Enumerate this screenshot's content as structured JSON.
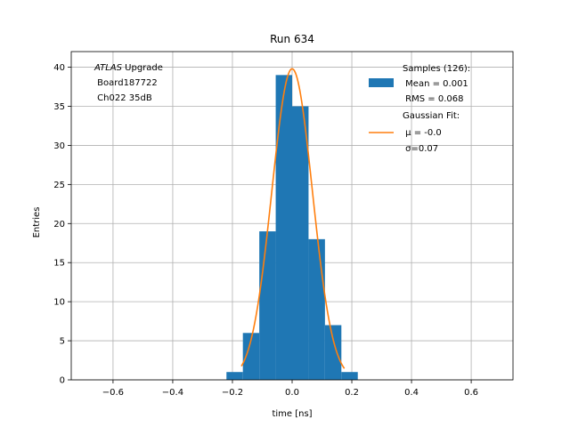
{
  "chart_data": {
    "type": "bar",
    "title": "Run 634",
    "xlabel": "time [ns]",
    "ylabel": "Entries",
    "xlim": [
      -0.74,
      0.74
    ],
    "ylim": [
      0,
      42
    ],
    "grid": true,
    "x_ticks": [
      -0.6,
      -0.4,
      -0.2,
      0.0,
      0.2,
      0.4,
      0.6
    ],
    "x_tick_labels": [
      "−0.6",
      "−0.4",
      "−0.2",
      "0.0",
      "0.2",
      "0.4",
      "0.6"
    ],
    "y_ticks": [
      0,
      5,
      10,
      15,
      20,
      25,
      30,
      35,
      40
    ],
    "y_tick_labels": [
      "0",
      "5",
      "10",
      "15",
      "20",
      "25",
      "30",
      "35",
      "40"
    ],
    "histogram": {
      "name": "Samples (126):",
      "color": "#1f77b4",
      "bins": [
        {
          "x0": -0.22,
          "x1": -0.165,
          "count": 1
        },
        {
          "x0": -0.165,
          "x1": -0.11,
          "count": 6
        },
        {
          "x0": -0.11,
          "x1": -0.055,
          "count": 19
        },
        {
          "x0": -0.055,
          "x1": 0.0,
          "count": 39
        },
        {
          "x0": 0.0,
          "x1": 0.055,
          "count": 35
        },
        {
          "x0": 0.055,
          "x1": 0.11,
          "count": 18
        },
        {
          "x0": 0.11,
          "x1": 0.165,
          "count": 7
        },
        {
          "x0": 0.165,
          "x1": 0.22,
          "count": 1
        }
      ]
    },
    "fit": {
      "name": "Gaussian Fit:",
      "color": "#ff7f0e",
      "mu": -0.0,
      "sigma": 0.068,
      "amplitude": 39.8,
      "x_range": [
        -0.17,
        0.175
      ]
    },
    "legend": {
      "placement": "top-right",
      "hist_lines": [
        "Samples (126):",
        " Mean = 0.001",
        " RMS = 0.068"
      ],
      "fit_lines": [
        "Gaussian Fit:",
        " μ = -0.0",
        " σ=0.07"
      ]
    },
    "annotation": {
      "placement": "top-left",
      "lines": [
        "ATLAS Upgrade",
        " Board187722",
        " Ch022 35dB"
      ],
      "italic_word": "ATLAS"
    }
  }
}
